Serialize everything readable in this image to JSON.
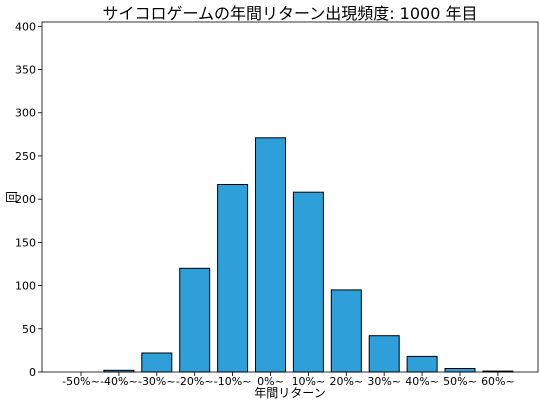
{
  "chart_data": {
    "type": "bar",
    "title": "サイコロゲームの年間リターン出現頻度: 1000 年目",
    "xlabel": "年間リターン",
    "ylabel": "回",
    "categories": [
      "-50%~",
      "-40%~",
      "-30%~",
      "-20%~",
      "-10%~",
      "0%~",
      "10%~",
      "20%~",
      "30%~",
      "40%~",
      "50%~",
      "60%~"
    ],
    "values": [
      0,
      2,
      22,
      120,
      217,
      271,
      208,
      95,
      42,
      18,
      4,
      1
    ],
    "ylim": [
      0,
      405
    ],
    "yticks": [
      0,
      50,
      100,
      150,
      200,
      250,
      300,
      350,
      400
    ],
    "bar_color": "#2e9fd9",
    "bar_edge_color": "#000000",
    "grid": false,
    "legend": "none"
  }
}
